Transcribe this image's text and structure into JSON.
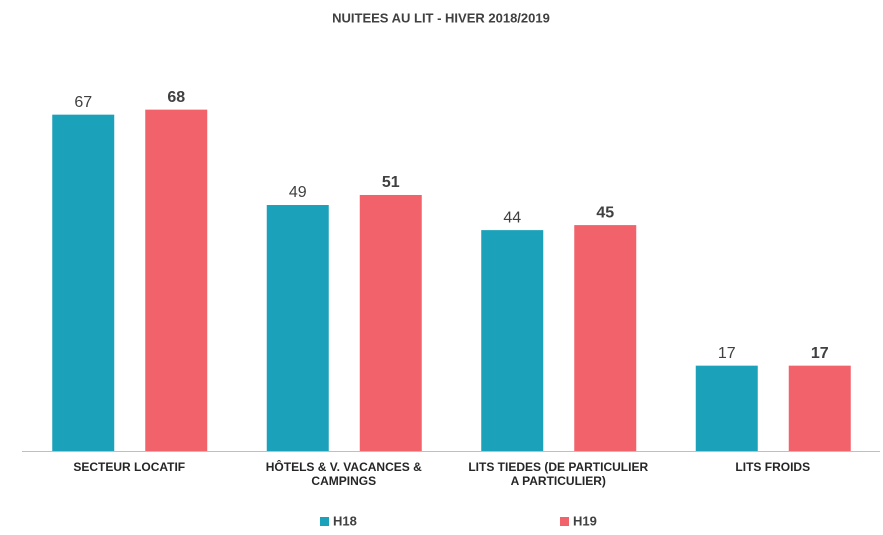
{
  "chart_data": {
    "type": "bar",
    "title": "NUITEES AU LIT - HIVER 2018/2019",
    "categories": [
      "SECTEUR LOCATIF",
      "HÔTELS & V. VACANCES & CAMPINGS",
      "LITS TIEDES (DE PARTICULIER A PARTICULIER)",
      "LITS FROIDS"
    ],
    "series": [
      {
        "name": "H18",
        "color": "#1ba1b9",
        "values": [
          67,
          49,
          44,
          17
        ]
      },
      {
        "name": "H19",
        "color": "#f2626b",
        "values": [
          68,
          51,
          45,
          17
        ]
      }
    ]
  }
}
